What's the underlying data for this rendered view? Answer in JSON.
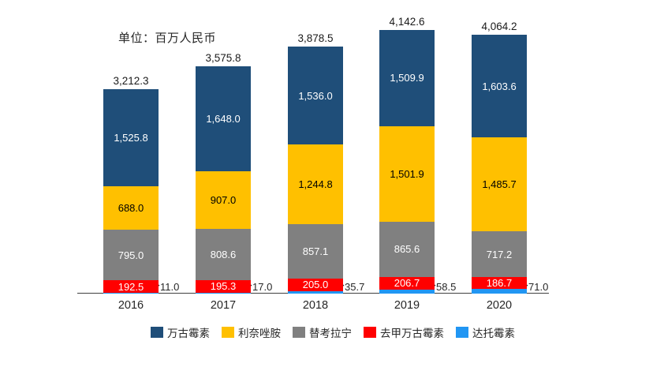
{
  "unit_label": "单位：百万人民币",
  "colors": {
    "vancomycin_blue": "#1F4E79",
    "linezolid_yellow": "#FFC000",
    "teicoplanin_gray": "#808080",
    "norvancomycin_red": "#FF0000",
    "daptomycin_lightblue": "#2196F3",
    "axis_line": "#404040",
    "text": "#262626"
  },
  "chart_data": {
    "type": "bar",
    "stacked": true,
    "title": "",
    "unit": "百万人民币",
    "xlabel": "",
    "ylabel": "",
    "ylim": [
      0,
      4400
    ],
    "grid": false,
    "legend_position": "bottom",
    "categories": [
      "2016",
      "2017",
      "2018",
      "2019",
      "2020"
    ],
    "series": [
      {
        "id": "vancomycin",
        "name": "万古霉素",
        "color": "#1F4E79",
        "label_color": "#FFFFFF",
        "label_outside": false,
        "values": [
          1525.8,
          1648.0,
          1536.0,
          1509.9,
          1603.6
        ]
      },
      {
        "id": "linezolid",
        "name": "利奈唑胺",
        "color": "#FFC000",
        "label_color": "#000000",
        "label_outside": false,
        "values": [
          688.0,
          907.0,
          1244.8,
          1501.9,
          1485.7
        ]
      },
      {
        "id": "teicoplanin",
        "name": "替考拉宁",
        "color": "#808080",
        "label_color": "#FFFFFF",
        "label_outside": false,
        "values": [
          795.0,
          808.6,
          857.1,
          865.6,
          717.2
        ]
      },
      {
        "id": "norvancomycin",
        "name": "去甲万古霉素",
        "color": "#FF0000",
        "label_color": "#FFFFFF",
        "label_outside": false,
        "values": [
          192.5,
          195.3,
          205.0,
          206.7,
          186.7
        ]
      },
      {
        "id": "daptomycin",
        "name": "达托霉素",
        "color": "#2196F3",
        "label_color": "#262626",
        "label_outside": true,
        "values": [
          11.0,
          17.0,
          35.7,
          58.5,
          71.0
        ]
      }
    ],
    "totals": [
      3212.3,
      3575.8,
      3878.5,
      4142.6,
      4064.2
    ]
  },
  "geometry_note": ""
}
